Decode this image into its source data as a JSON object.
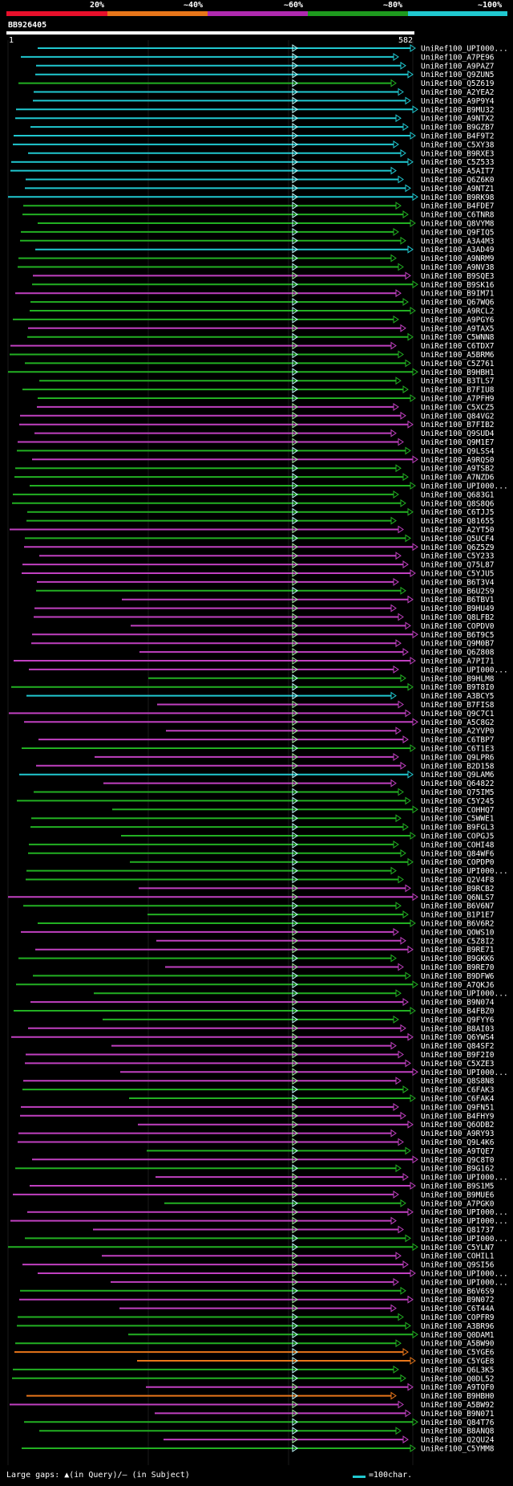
{
  "scale": {
    "labels": [
      "20%",
      "~40%",
      "~60%",
      "~80%",
      "~100%"
    ],
    "colors": [
      "#e8102b",
      "#e8761a",
      "#b02ab0",
      "#1e9a1e",
      "#20c8d0"
    ]
  },
  "query": {
    "id": "BB926405",
    "start": "1",
    "end": "582"
  },
  "legend": {
    "left": "Large gaps: ▲(in Query)/– (in Subject)",
    "right": "=100char."
  },
  "hits": [
    {
      "label": "UniRef100_UPI000...",
      "color": "cyan"
    },
    {
      "label": "UniRef100_A7PE96",
      "color": "cyan"
    },
    {
      "label": "UniRef100_A9PAZ7",
      "color": "cyan"
    },
    {
      "label": "UniRef100_Q9ZUN5",
      "color": "cyan"
    },
    {
      "label": "UniRef100_Q5Z619",
      "color": "green"
    },
    {
      "label": "UniRef100_A2YEA2",
      "color": "cyan"
    },
    {
      "label": "UniRef100_A9P9Y4",
      "color": "cyan"
    },
    {
      "label": "UniRef100_B9MU32",
      "color": "cyan"
    },
    {
      "label": "UniRef100_A9NTX2",
      "color": "cyan"
    },
    {
      "label": "UniRef100_B9GZB7",
      "color": "cyan"
    },
    {
      "label": "UniRef100_B4F9T2",
      "color": "cyan"
    },
    {
      "label": "UniRef100_C5XY38",
      "color": "cyan"
    },
    {
      "label": "UniRef100_B9RXE3",
      "color": "cyan"
    },
    {
      "label": "UniRef100_C5Z533",
      "color": "cyan"
    },
    {
      "label": "UniRef100_A5AIT7",
      "color": "cyan"
    },
    {
      "label": "UniRef100_Q6Z6K0",
      "color": "cyan"
    },
    {
      "label": "UniRef100_A9NTZ1",
      "color": "cyan"
    },
    {
      "label": "UniRef100_B9RK98",
      "color": "cyan"
    },
    {
      "label": "UniRef100_B4FDE7",
      "color": "green"
    },
    {
      "label": "UniRef100_C6TNR8",
      "color": "green"
    },
    {
      "label": "UniRef100_Q8VYM8",
      "color": "green"
    },
    {
      "label": "UniRef100_Q9FIQ5",
      "color": "green"
    },
    {
      "label": "UniRef100_A3A4M3",
      "color": "green"
    },
    {
      "label": "UniRef100_A3AD49",
      "color": "cyan"
    },
    {
      "label": "UniRef100_A9NRM9",
      "color": "green"
    },
    {
      "label": "UniRef100_A9NV38",
      "color": "green"
    },
    {
      "label": "UniRef100_B9SQE3",
      "color": "purple"
    },
    {
      "label": "UniRef100_B9SK16",
      "color": "green"
    },
    {
      "label": "UniRef100_B9IM71",
      "color": "purple"
    },
    {
      "label": "UniRef100_Q67WQ6",
      "color": "green"
    },
    {
      "label": "UniRef100_A9RCL2",
      "color": "green"
    },
    {
      "label": "UniRef100_A9PGY6",
      "color": "green"
    },
    {
      "label": "UniRef100_A9TAX5",
      "color": "purple"
    },
    {
      "label": "UniRef100_C5WNN8",
      "color": "green"
    },
    {
      "label": "UniRef100_C6TDX7",
      "color": "purple"
    },
    {
      "label": "UniRef100_A5BRM6",
      "color": "green"
    },
    {
      "label": "UniRef100_C5Z761",
      "color": "green"
    },
    {
      "label": "UniRef100_B9HBH1",
      "color": "green"
    },
    {
      "label": "UniRef100_B3TLS7",
      "color": "green"
    },
    {
      "label": "UniRef100_B7FIU8",
      "color": "green"
    },
    {
      "label": "UniRef100_A7PFH9",
      "color": "green"
    },
    {
      "label": "UniRef100_C5XCZ5",
      "color": "purple"
    },
    {
      "label": "UniRef100_Q84VG2",
      "color": "purple"
    },
    {
      "label": "UniRef100_B7FIB2",
      "color": "purple"
    },
    {
      "label": "UniRef100_Q9SUD4",
      "color": "purple"
    },
    {
      "label": "UniRef100_Q9M1E7",
      "color": "purple"
    },
    {
      "label": "UniRef100_Q9LSS4",
      "color": "green"
    },
    {
      "label": "UniRef100_A9RQS0",
      "color": "purple"
    },
    {
      "label": "UniRef100_A9TSB2",
      "color": "green"
    },
    {
      "label": "UniRef100_A7NZD6",
      "color": "green"
    },
    {
      "label": "UniRef100_UPI000...",
      "color": "green"
    },
    {
      "label": "UniRef100_Q683G1",
      "color": "green"
    },
    {
      "label": "UniRef100_Q8S8Q6",
      "color": "green"
    },
    {
      "label": "UniRef100_C6TJJ5",
      "color": "green"
    },
    {
      "label": "UniRef100_Q81655",
      "color": "green"
    },
    {
      "label": "UniRef100_A2YT50",
      "color": "purple"
    },
    {
      "label": "UniRef100_Q5UCF4",
      "color": "green"
    },
    {
      "label": "UniRef100_Q6Z5Z9",
      "color": "purple"
    },
    {
      "label": "UniRef100_C5Y233",
      "color": "purple"
    },
    {
      "label": "UniRef100_Q75L87",
      "color": "purple"
    },
    {
      "label": "UniRef100_C5YJU5",
      "color": "purple"
    },
    {
      "label": "UniRef100_B6T3V4",
      "color": "purple"
    },
    {
      "label": "UniRef100_B6U2S9",
      "color": "green"
    },
    {
      "label": "UniRef100_B6TBV1",
      "color": "purple"
    },
    {
      "label": "UniRef100_B9HU49",
      "color": "purple"
    },
    {
      "label": "UniRef100_Q8LFB2",
      "color": "purple"
    },
    {
      "label": "UniRef100_COPDV0",
      "color": "purple"
    },
    {
      "label": "UniRef100_B6T9C5",
      "color": "purple"
    },
    {
      "label": "UniRef100_Q9M0B7",
      "color": "purple"
    },
    {
      "label": "UniRef100_Q6Z808",
      "color": "purple"
    },
    {
      "label": "UniRef100_A7PI71",
      "color": "purple"
    },
    {
      "label": "UniRef100_UPI000...",
      "color": "purple"
    },
    {
      "label": "UniRef100_B9HLM8",
      "color": "green"
    },
    {
      "label": "UniRef100_B9T8I0",
      "color": "green"
    },
    {
      "label": "UniRef100_A3BCY5",
      "color": "cyan"
    },
    {
      "label": "UniRef100_B7FIS8",
      "color": "purple"
    },
    {
      "label": "UniRef100_Q9C7C1",
      "color": "purple"
    },
    {
      "label": "UniRef100_A5C8G2",
      "color": "purple"
    },
    {
      "label": "UniRef100_A2YVP0",
      "color": "purple"
    },
    {
      "label": "UniRef100_C6TBP7",
      "color": "purple"
    },
    {
      "label": "UniRef100_C6T1E3",
      "color": "green"
    },
    {
      "label": "UniRef100_Q9LPR6",
      "color": "purple"
    },
    {
      "label": "UniRef100_B2D158",
      "color": "purple"
    },
    {
      "label": "UniRef100_Q9LAM6",
      "color": "cyan"
    },
    {
      "label": "UniRef100_Q64822",
      "color": "purple"
    },
    {
      "label": "UniRef100_Q75IM5",
      "color": "green"
    },
    {
      "label": "UniRef100_C5Y245",
      "color": "green"
    },
    {
      "label": "UniRef100_COHHQ7",
      "color": "green"
    },
    {
      "label": "UniRef100_C5WWE1",
      "color": "green"
    },
    {
      "label": "UniRef100_B9FGL3",
      "color": "green"
    },
    {
      "label": "UniRef100_COPGJ5",
      "color": "green"
    },
    {
      "label": "UniRef100_COHI48",
      "color": "green"
    },
    {
      "label": "UniRef100_Q84WF6",
      "color": "green"
    },
    {
      "label": "UniRef100_COPDP0",
      "color": "green"
    },
    {
      "label": "UniRef100_UPI000...",
      "color": "green"
    },
    {
      "label": "UniRef100_Q2V4F8",
      "color": "green"
    },
    {
      "label": "UniRef100_B9RCB2",
      "color": "purple"
    },
    {
      "label": "UniRef100_Q6NLS7",
      "color": "purple"
    },
    {
      "label": "UniRef100_B6V6N7",
      "color": "green"
    },
    {
      "label": "UniRef100_B1P1E7",
      "color": "green"
    },
    {
      "label": "UniRef100_B6V6R2",
      "color": "green"
    },
    {
      "label": "UniRef100_QOWS10",
      "color": "purple"
    },
    {
      "label": "UniRef100_C5Z8I2",
      "color": "purple"
    },
    {
      "label": "UniRef100_B9RE71",
      "color": "purple"
    },
    {
      "label": "UniRef100_B9GKK6",
      "color": "green"
    },
    {
      "label": "UniRef100_B9RE70",
      "color": "purple"
    },
    {
      "label": "UniRef100_B9DFW6",
      "color": "green"
    },
    {
      "label": "UniRef100_A7QKJ6",
      "color": "green"
    },
    {
      "label": "UniRef100_UPI000...",
      "color": "green"
    },
    {
      "label": "UniRef100_B9N074",
      "color": "purple"
    },
    {
      "label": "UniRef100_B4FBZ0",
      "color": "green"
    },
    {
      "label": "UniRef100_Q9FYY6",
      "color": "green"
    },
    {
      "label": "UniRef100_B8AI03",
      "color": "purple"
    },
    {
      "label": "UniRef100_Q6YWS4",
      "color": "purple"
    },
    {
      "label": "UniRef100_Q84SF2",
      "color": "purple"
    },
    {
      "label": "UniRef100_B9F2I0",
      "color": "purple"
    },
    {
      "label": "UniRef100_C5XZE3",
      "color": "purple"
    },
    {
      "label": "UniRef100_UPI000...",
      "color": "purple"
    },
    {
      "label": "UniRef100_Q8S8N8",
      "color": "purple"
    },
    {
      "label": "UniRef100_C6FAK3",
      "color": "green"
    },
    {
      "label": "UniRef100_C6FAK4",
      "color": "green"
    },
    {
      "label": "UniRef100_Q9FN51",
      "color": "purple"
    },
    {
      "label": "UniRef100_B4FHY9",
      "color": "purple"
    },
    {
      "label": "UniRef100_Q6ODB2",
      "color": "purple"
    },
    {
      "label": "UniRef100_A9RY93",
      "color": "purple"
    },
    {
      "label": "UniRef100_Q9L4K6",
      "color": "purple"
    },
    {
      "label": "UniRef100_A9TQE7",
      "color": "green"
    },
    {
      "label": "UniRef100_Q9C8T0",
      "color": "purple"
    },
    {
      "label": "UniRef100_B9G162",
      "color": "green"
    },
    {
      "label": "UniRef100_UPI000...",
      "color": "purple"
    },
    {
      "label": "UniRef100_B9S1M5",
      "color": "purple"
    },
    {
      "label": "UniRef100_B9MUE6",
      "color": "purple"
    },
    {
      "label": "UniRef100_A7PGK0",
      "color": "green"
    },
    {
      "label": "UniRef100_UPI000...",
      "color": "purple"
    },
    {
      "label": "UniRef100_UPI000...",
      "color": "purple"
    },
    {
      "label": "UniRef100_Q81737",
      "color": "purple"
    },
    {
      "label": "UniRef100_UPI000...",
      "color": "green"
    },
    {
      "label": "UniRef100_C5YLN7",
      "color": "green"
    },
    {
      "label": "UniRef100_COHIL1",
      "color": "purple"
    },
    {
      "label": "UniRef100_Q9SI56",
      "color": "purple"
    },
    {
      "label": "UniRef100_UPI000...",
      "color": "purple"
    },
    {
      "label": "UniRef100_UPI000...",
      "color": "purple"
    },
    {
      "label": "UniRef100_B6V6S9",
      "color": "green"
    },
    {
      "label": "UniRef100_B9N072",
      "color": "purple"
    },
    {
      "label": "UniRef100_C6T44A",
      "color": "purple"
    },
    {
      "label": "UniRef100_COPFR9",
      "color": "green"
    },
    {
      "label": "UniRef100_A3BR96",
      "color": "green"
    },
    {
      "label": "UniRef100_Q0DAM1",
      "color": "green"
    },
    {
      "label": "UniRef100_A5BW90",
      "color": "green"
    },
    {
      "label": "UniRef100_C5YGE6",
      "color": "orange"
    },
    {
      "label": "UniRef100_C5YGE8",
      "color": "orange"
    },
    {
      "label": "UniRef100_Q6L3K5",
      "color": "green"
    },
    {
      "label": "UniRef100_Q0DL52",
      "color": "green"
    },
    {
      "label": "UniRef100_A9TQF0",
      "color": "purple"
    },
    {
      "label": "UniRef100_B9HBH0",
      "color": "orange"
    },
    {
      "label": "UniRef100_A5BW92",
      "color": "purple"
    },
    {
      "label": "UniRef100_B9N071",
      "color": "purple"
    },
    {
      "label": "UniRef100_Q84T76",
      "color": "green"
    },
    {
      "label": "UniRef100_B8ANQ8",
      "color": "green"
    },
    {
      "label": "UniRef100_Q2QU24",
      "color": "purple"
    },
    {
      "label": "UniRef100_C5YMM8",
      "color": "green"
    }
  ]
}
